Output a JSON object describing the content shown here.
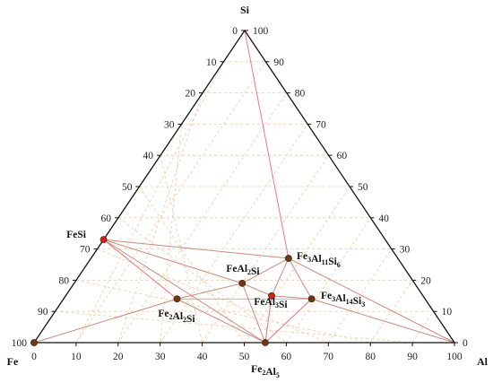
{
  "chart_data": {
    "type": "scatter",
    "subtype": "ternary-phase-diagram",
    "corners": {
      "top": "Si",
      "left": "Fe",
      "right": "Al"
    },
    "axis_ticks": {
      "bottom": [
        "0",
        "10",
        "20",
        "30",
        "40",
        "50",
        "60",
        "70",
        "80",
        "90",
        "100"
      ],
      "left": [
        "100",
        "90",
        "80",
        "70",
        "60",
        "50",
        "40",
        "30",
        "20",
        "10",
        "0"
      ],
      "right": [
        "100",
        "90",
        "80",
        "70",
        "60",
        "50",
        "40",
        "30",
        "20",
        "10",
        "0"
      ]
    },
    "grid": true,
    "grid_color": "#f2c79a",
    "triangle_color": "#111111",
    "tie_line_color": "#c98a7a",
    "pink_line_color": "#ee7788",
    "point_color_dark": "#6b3a10",
    "point_color_red": "#cc2222",
    "phases": [
      {
        "id": "Fe",
        "label": "",
        "al": 0,
        "si": 0,
        "color": "dark"
      },
      {
        "id": "FeSi",
        "label": "FeSi",
        "al": 0,
        "si": 33,
        "color": "red"
      },
      {
        "id": "Fe2Al5",
        "label": "Fe2Al5",
        "al": 55,
        "si": 0,
        "color": "dark"
      },
      {
        "id": "Al",
        "label": "",
        "al": 100,
        "si": 0,
        "color": "none"
      },
      {
        "id": "Fe3Al11Si6",
        "label": "Fe3Al11Si6",
        "al": 47,
        "si": 27,
        "color": "dark"
      },
      {
        "id": "FeAl2Si",
        "label": "FeAl2Si",
        "al": 40,
        "si": 19,
        "color": "dark"
      },
      {
        "id": "FeAl3Si",
        "label": "FeAl3Si",
        "al": 49,
        "si": 15,
        "color": "red"
      },
      {
        "id": "Fe3Al14Si3",
        "label": "Fe3Al14Si3",
        "al": 59,
        "si": 14,
        "color": "dark"
      },
      {
        "id": "Fe2Al2Si",
        "label": "Fe2Al2Si",
        "al": 27,
        "si": 14,
        "color": "dark"
      }
    ],
    "tie_lines": [
      [
        "FeSi",
        "Fe3Al11Si6"
      ],
      [
        "FeSi",
        "FeAl2Si"
      ],
      [
        "FeSi",
        "Fe2Al2Si"
      ],
      [
        "FeSi",
        "Fe2Al5"
      ],
      [
        "Fe3Al11Si6",
        "FeAl2Si"
      ],
      [
        "Fe3Al11Si6",
        "FeAl3Si"
      ],
      [
        "Fe3Al11Si6",
        "Fe3Al14Si3"
      ],
      [
        "Fe3Al11Si6",
        "Al"
      ],
      [
        "FeAl2Si",
        "FeAl3Si"
      ],
      [
        "FeAl2Si",
        "Fe2Al5"
      ],
      [
        "FeAl2Si",
        "Fe2Al2Si"
      ],
      [
        "FeAl3Si",
        "Fe3Al14Si3"
      ],
      [
        "FeAl3Si",
        "Fe2Al5"
      ],
      [
        "Fe3Al14Si3",
        "Fe2Al5"
      ],
      [
        "Fe3Al14Si3",
        "Al"
      ],
      [
        "Fe2Al2Si",
        "Fe2Al5"
      ],
      [
        "Fe2Al2Si",
        "Fe"
      ],
      [
        "Fe",
        "Fe2Al5"
      ],
      [
        "Fe2Al5",
        "Al"
      ]
    ],
    "pink_lines": [
      [
        "FeSi",
        "Fe2Al2Si"
      ],
      [
        "Fe2Al2Si",
        "Fe3Al14Si3"
      ],
      [
        "Fe2Al5",
        "FeAl3Si"
      ],
      [
        "Fe2Al5",
        "Fe3Al14Si3"
      ]
    ],
    "si_apex_line": {
      "from_si": 100,
      "to": "Fe3Al11Si6"
    }
  }
}
